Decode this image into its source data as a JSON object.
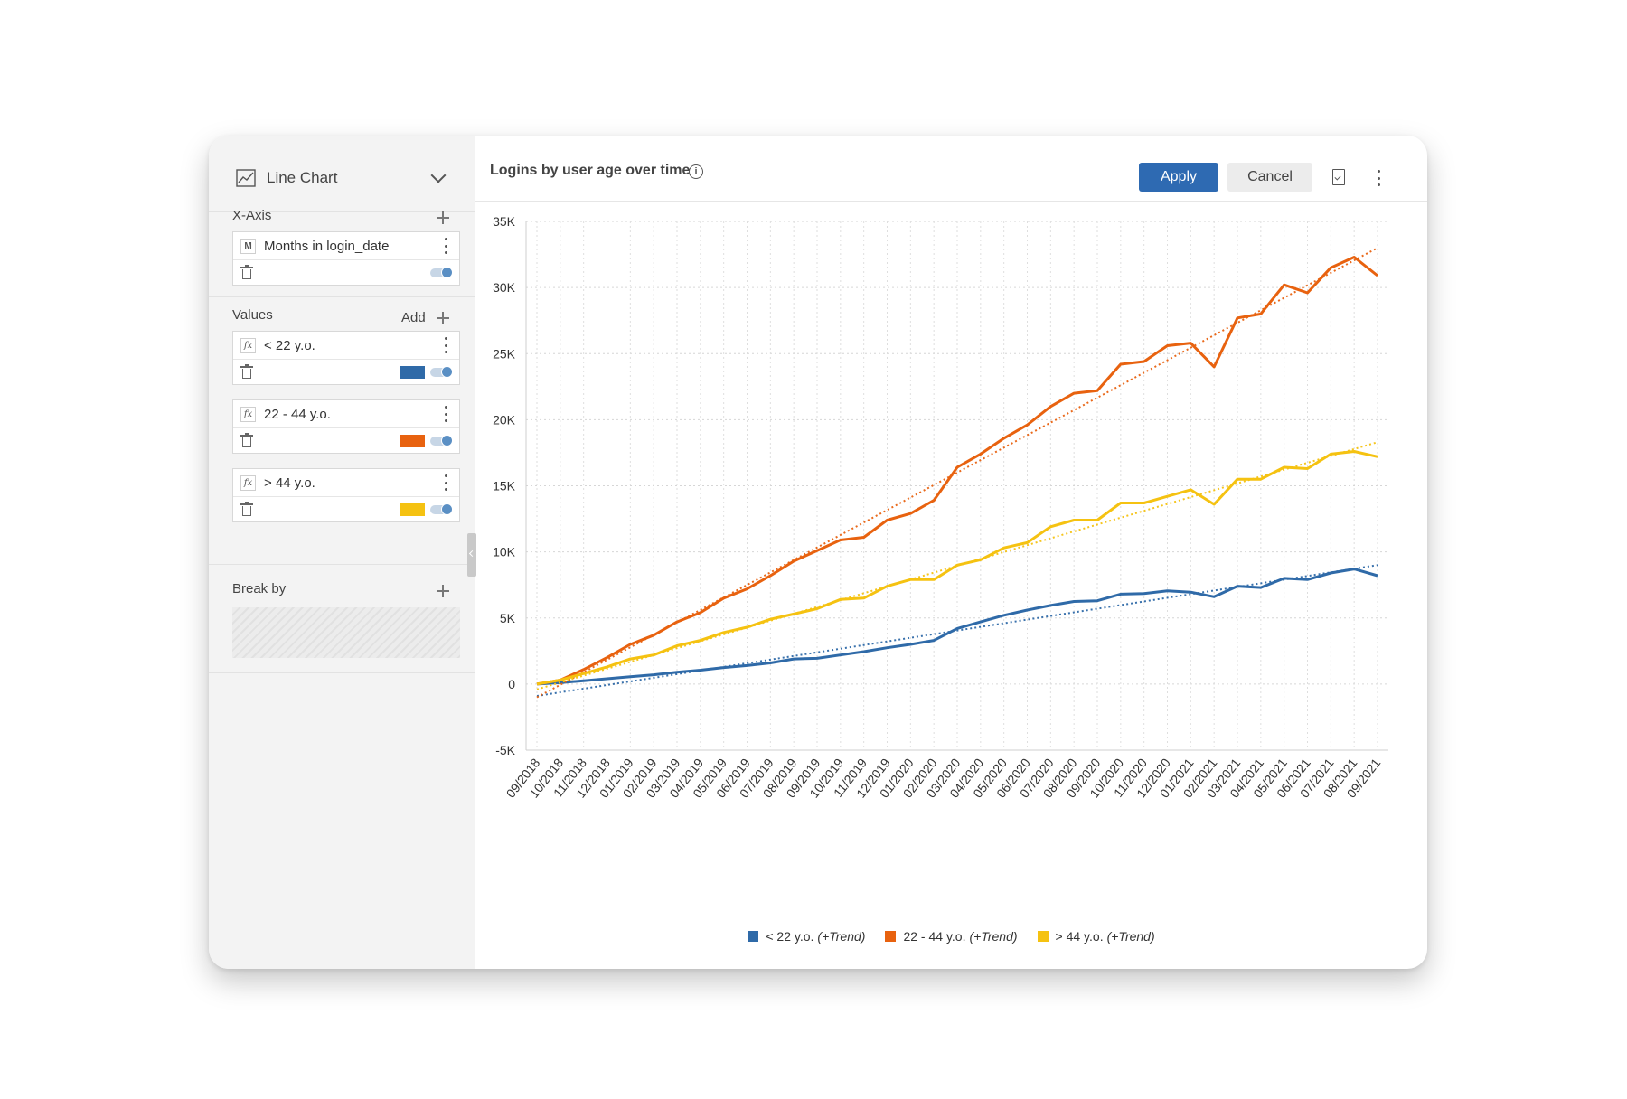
{
  "left_panel": {
    "chart_type": {
      "icon": "line-chart-icon",
      "label": "Line Chart"
    },
    "x_axis": {
      "label": "X-Axis",
      "field": {
        "badge": "M",
        "name": "Months in login_date"
      }
    },
    "values": {
      "label": "Values",
      "add_label": "Add",
      "fields": [
        {
          "badge": "fx",
          "name": "< 22 y.o.",
          "color": "#2f6aa8"
        },
        {
          "badge": "fx",
          "name": "22 - 44 y.o.",
          "color": "#e8620f"
        },
        {
          "badge": "fx",
          "name": "> 44 y.o.",
          "color": "#f5c211"
        }
      ]
    },
    "break_by": {
      "label": "Break by"
    }
  },
  "header": {
    "title": "Logins by user age over time",
    "info_icon": "info-icon",
    "apply_label": "Apply",
    "cancel_label": "Cancel",
    "export_icon": "document-export-icon"
  },
  "chart_data": {
    "type": "line",
    "title": "Logins by user age over time",
    "categories": [
      "09/2018",
      "10/2018",
      "11/2018",
      "12/2018",
      "01/2019",
      "02/2019",
      "03/2019",
      "04/2019",
      "05/2019",
      "06/2019",
      "07/2019",
      "08/2019",
      "09/2019",
      "10/2019",
      "11/2019",
      "12/2019",
      "01/2020",
      "02/2020",
      "03/2020",
      "04/2020",
      "05/2020",
      "06/2020",
      "07/2020",
      "08/2020",
      "09/2020",
      "10/2020",
      "11/2020",
      "12/2020",
      "01/2021",
      "02/2021",
      "03/2021",
      "04/2021",
      "05/2021",
      "06/2021",
      "07/2021",
      "08/2021",
      "09/2021"
    ],
    "y_ticks": [
      "35K",
      "30K",
      "25K",
      "20K",
      "15K",
      "10K",
      "5K",
      "0",
      "-5K"
    ],
    "ylim": [
      -5000,
      35000
    ],
    "grid": true,
    "legend_position": "bottom",
    "series": [
      {
        "name": "< 22 y.o.",
        "trend_label": "(+Trend)",
        "color": "#2f6aa8",
        "values": [
          0,
          100,
          250,
          400,
          550,
          700,
          900,
          1050,
          1250,
          1400,
          1600,
          1900,
          1950,
          2200,
          2450,
          2750,
          3000,
          3300,
          4200,
          4700,
          5200,
          5600,
          5950,
          6250,
          6300,
          6800,
          6850,
          7050,
          6950,
          6600,
          7400,
          7300,
          8000,
          7900,
          8400,
          8700,
          8200
        ],
        "trend": [
          -900,
          9000
        ]
      },
      {
        "name": "22 - 44 y.o.",
        "trend_label": "(+Trend)",
        "color": "#e8620f",
        "values": [
          0,
          300,
          1100,
          2000,
          3000,
          3700,
          4700,
          5400,
          6500,
          7200,
          8200,
          9300,
          10100,
          10900,
          11100,
          12400,
          12900,
          13900,
          16400,
          17400,
          18600,
          19600,
          21000,
          22000,
          22200,
          24200,
          24400,
          25600,
          25800,
          24000,
          27700,
          28000,
          30200,
          29600,
          31500,
          32300,
          30900
        ],
        "trend": [
          -1000,
          33000
        ]
      },
      {
        "name": "> 44 y.o.",
        "trend_label": "(+Trend)",
        "color": "#f5c211",
        "values": [
          0,
          300,
          800,
          1300,
          1900,
          2200,
          2900,
          3300,
          3900,
          4300,
          4900,
          5300,
          5700,
          6400,
          6500,
          7400,
          7900,
          7900,
          9000,
          9400,
          10300,
          10700,
          11900,
          12400,
          12400,
          13700,
          13700,
          14200,
          14700,
          13600,
          15500,
          15500,
          16400,
          16300,
          17400,
          17600,
          17200
        ],
        "trend": [
          -400,
          18300
        ]
      }
    ]
  }
}
